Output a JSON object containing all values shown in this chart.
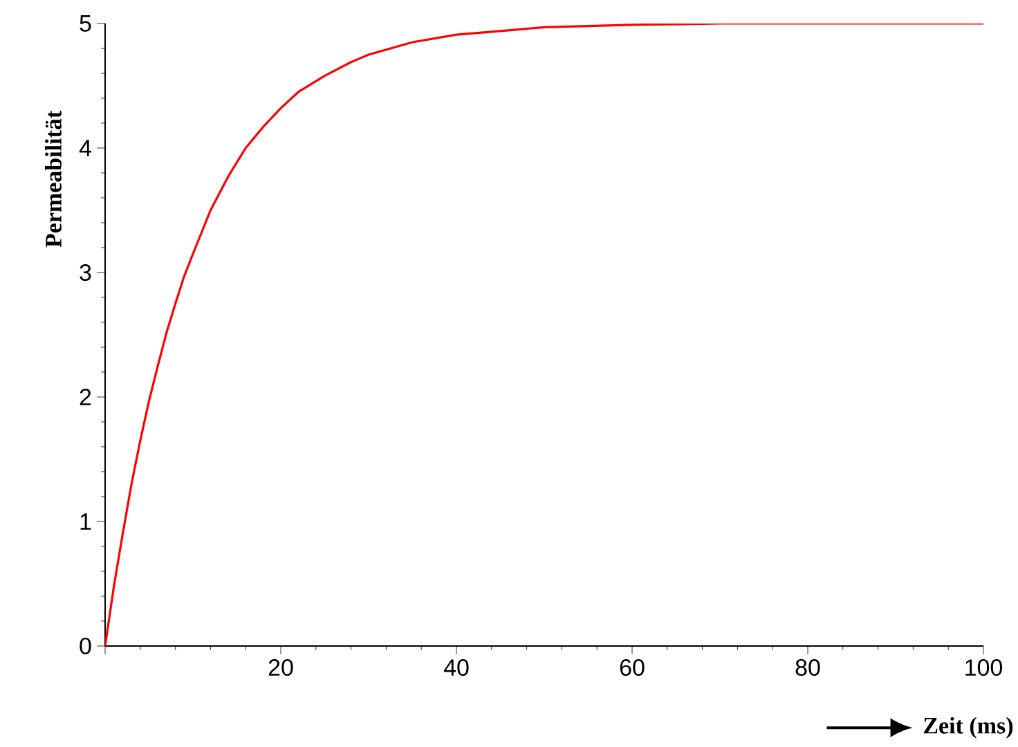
{
  "chart_data": {
    "type": "line",
    "xlabel": "Zeit (ms)",
    "ylabel": "Permeabilität",
    "xlim": [
      0,
      100
    ],
    "ylim": [
      0,
      5
    ],
    "xticks": [
      {
        "value": 0,
        "label": null
      },
      20,
      40,
      60,
      80,
      100
    ],
    "yticks": [
      0,
      1,
      2,
      3,
      4,
      5
    ],
    "grid": false,
    "marker": "none",
    "line_style": "solid",
    "series": [
      {
        "color": "#ff0000",
        "x": [
          0,
          1,
          2,
          3,
          4,
          5,
          6,
          7,
          8,
          9,
          10,
          12,
          14,
          16,
          18,
          20,
          22,
          25,
          28,
          30,
          35,
          40,
          45,
          50,
          55,
          60,
          70,
          80,
          90,
          100
        ],
        "values": [
          0,
          0.48,
          0.9,
          1.3,
          1.65,
          1.97,
          2.25,
          2.52,
          2.75,
          2.97,
          3.15,
          3.5,
          3.77,
          4.0,
          4.17,
          4.32,
          4.45,
          4.58,
          4.69,
          4.75,
          4.85,
          4.91,
          4.94,
          4.97,
          4.98,
          4.99,
          5.0,
          5.0,
          5.0,
          5.0
        ]
      }
    ]
  }
}
